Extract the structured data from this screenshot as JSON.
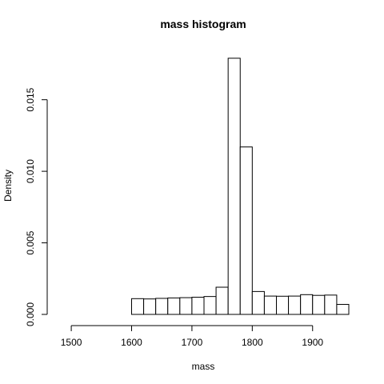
{
  "chart_data": {
    "type": "bar",
    "title": "mass  histogram",
    "xlabel": "mass",
    "ylabel": "Density",
    "xlim": [
      1480,
      1960
    ],
    "ylim": [
      0,
      0.018
    ],
    "x_ticks": [
      1500,
      1600,
      1700,
      1800,
      1900
    ],
    "x_tick_labels": [
      "1500",
      "1600",
      "1700",
      "1800",
      "1900"
    ],
    "y_ticks": [
      0,
      0.005,
      0.01,
      0.015
    ],
    "y_tick_labels": [
      "0.000",
      "0.005",
      "0.010",
      "0.015"
    ],
    "grid": false,
    "bin_width": 20,
    "bins": [
      {
        "start": 1480,
        "end": 1500,
        "density": 0
      },
      {
        "start": 1500,
        "end": 1520,
        "density": 0
      },
      {
        "start": 1520,
        "end": 1540,
        "density": 0
      },
      {
        "start": 1540,
        "end": 1560,
        "density": 0
      },
      {
        "start": 1560,
        "end": 1580,
        "density": 0
      },
      {
        "start": 1580,
        "end": 1600,
        "density": 0
      },
      {
        "start": 1600,
        "end": 1620,
        "density": 0.0011
      },
      {
        "start": 1620,
        "end": 1640,
        "density": 0.00108
      },
      {
        "start": 1640,
        "end": 1660,
        "density": 0.00112
      },
      {
        "start": 1660,
        "end": 1680,
        "density": 0.00115
      },
      {
        "start": 1680,
        "end": 1700,
        "density": 0.00117
      },
      {
        "start": 1700,
        "end": 1720,
        "density": 0.0012
      },
      {
        "start": 1720,
        "end": 1740,
        "density": 0.00125
      },
      {
        "start": 1740,
        "end": 1760,
        "density": 0.0019
      },
      {
        "start": 1760,
        "end": 1780,
        "density": 0.0179
      },
      {
        "start": 1780,
        "end": 1800,
        "density": 0.0117
      },
      {
        "start": 1800,
        "end": 1820,
        "density": 0.0016
      },
      {
        "start": 1820,
        "end": 1840,
        "density": 0.00128
      },
      {
        "start": 1840,
        "end": 1860,
        "density": 0.00127
      },
      {
        "start": 1860,
        "end": 1880,
        "density": 0.00128
      },
      {
        "start": 1880,
        "end": 1900,
        "density": 0.00138
      },
      {
        "start": 1900,
        "end": 1920,
        "density": 0.00133
      },
      {
        "start": 1920,
        "end": 1940,
        "density": 0.00135
      },
      {
        "start": 1940,
        "end": 1960,
        "density": 0.0007
      }
    ]
  }
}
